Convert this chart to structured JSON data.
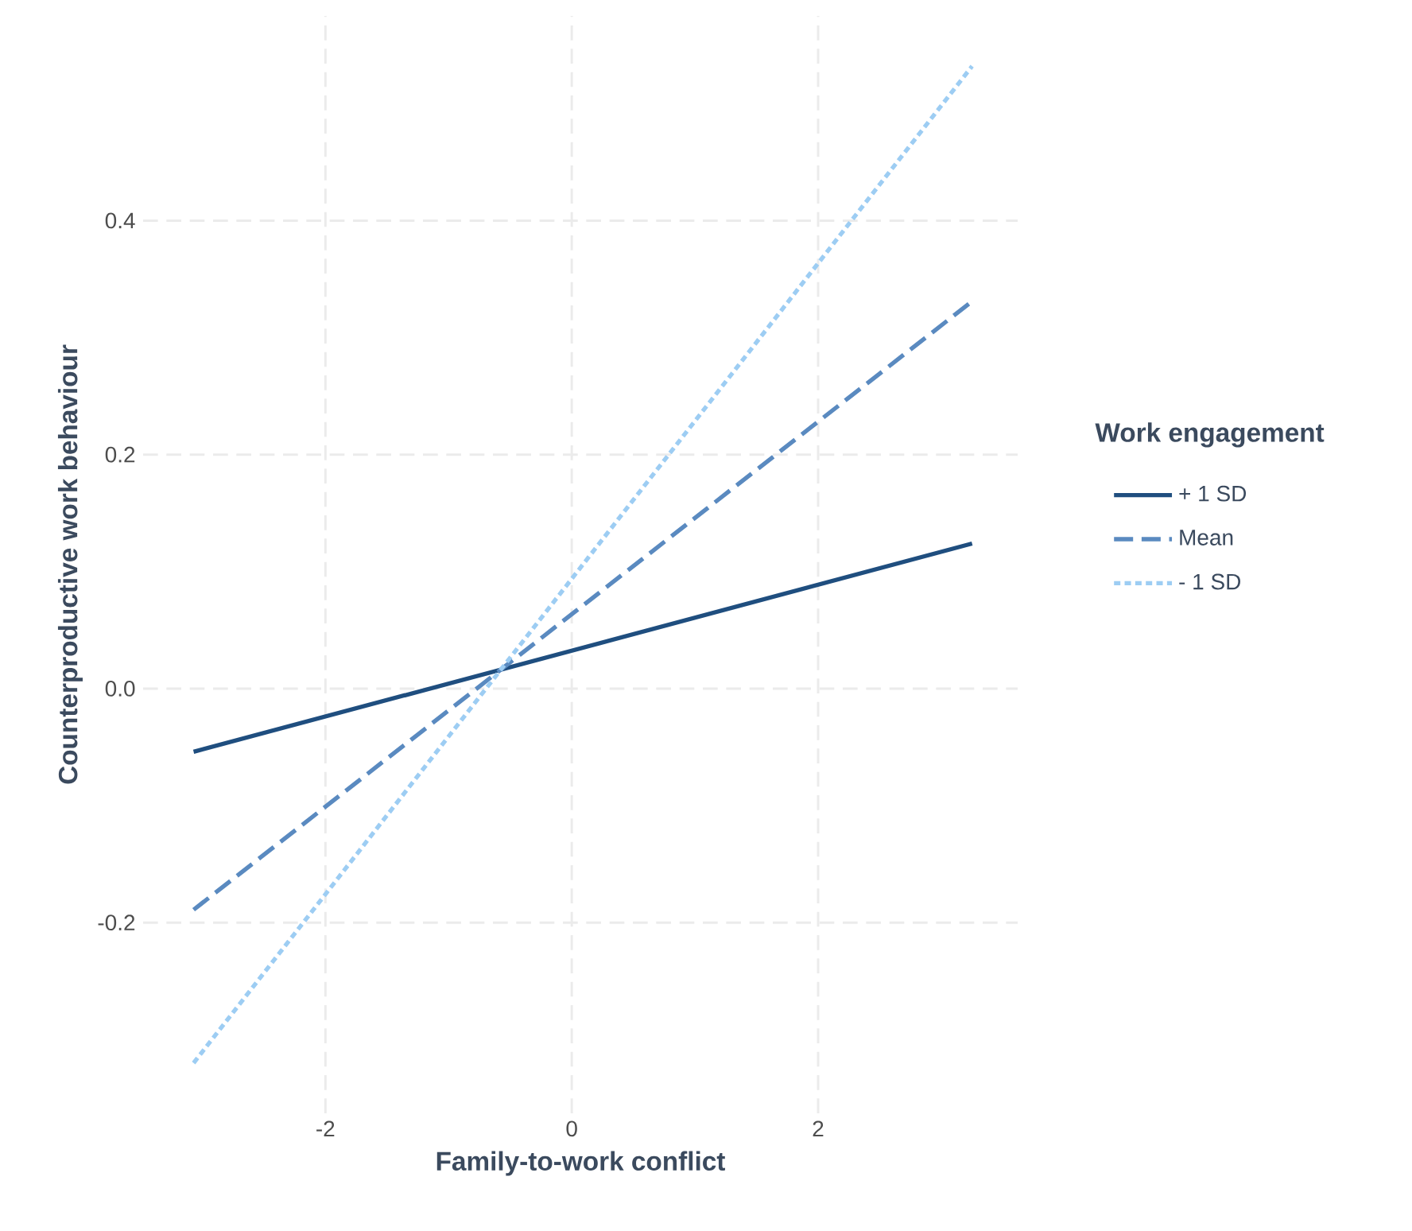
{
  "chart_data": {
    "type": "line",
    "xlabel": "Family-to-work conflict",
    "ylabel": "Counterproductive work behaviour",
    "legend_title": "Work engagement",
    "xlim": [
      -3.48,
      3.62
    ],
    "ylim": [
      -0.363,
      0.575
    ],
    "xticks": [
      -2,
      0,
      2
    ],
    "yticks": [
      -0.2,
      {
        "value": 0,
        "label": "0.0"
      },
      0.2,
      0.4
    ],
    "grid": true,
    "legend": "right",
    "x": [
      -3.07,
      3.25
    ],
    "series": [
      {
        "name": "+ 1 SD",
        "color": "#1f4e7f",
        "line_style": "solid",
        "values": [
          -0.054,
          0.124
        ]
      },
      {
        "name": "Mean",
        "color": "#5a8ac0",
        "line_style": "dashed",
        "values": [
          -0.189,
          0.331
        ]
      },
      {
        "name": "- 1 SD",
        "color": "#9dcdf3",
        "line_style": "dotted",
        "values": [
          -0.32,
          0.532
        ]
      }
    ]
  }
}
